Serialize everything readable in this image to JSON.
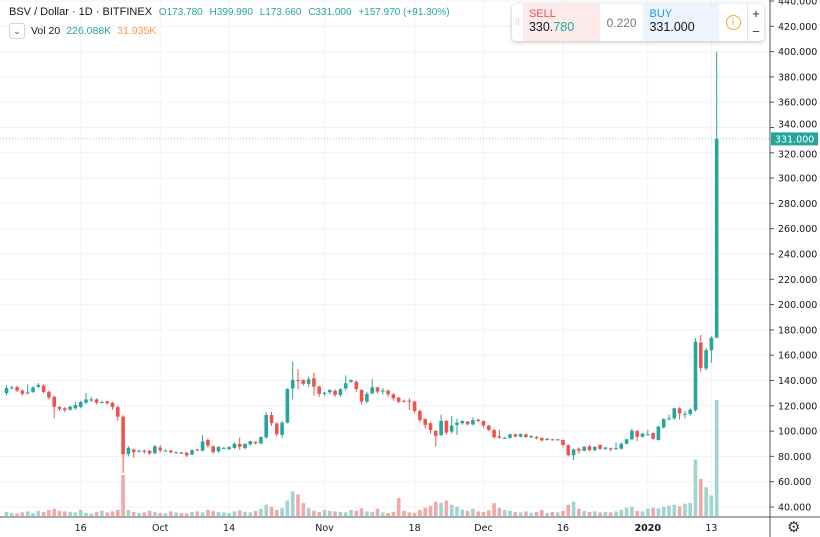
{
  "legend": {
    "symbol": "BSV / Dollar · 1D · BITFINEX",
    "open": "O173.780",
    "high": "H399.990",
    "low": "L173.660",
    "close": "C331.000",
    "change": "+157.970 (+91.30%)",
    "volume_label": "Vol 20",
    "volume_value": "226.088K",
    "volume_ma": "31.935K"
  },
  "trade_panel": {
    "sell_label": "SELL",
    "sell_price_main": "330.",
    "sell_price_tail": "780",
    "spread": "0.220",
    "buy_label": "BUY",
    "buy_price": "331.000",
    "info_icon": "i",
    "zoom_in": "+",
    "zoom_out": "−"
  },
  "colors": {
    "up": "#26a69a",
    "down": "#ef5350",
    "up_vol": "#9fd4cf",
    "down_vol": "#f2a8a6"
  },
  "chart_data": {
    "type": "candlestick",
    "ylim": [
      40,
      440
    ],
    "y_ticks": [
      "40.000",
      "60.000",
      "80.000",
      "100.000",
      "120.000",
      "140.000",
      "160.000",
      "180.000",
      "200.000",
      "220.000",
      "240.000",
      "260.000",
      "280.000",
      "300.000",
      "320.000",
      "340.000",
      "360.000",
      "380.000",
      "400.000",
      "420.000",
      "440.000"
    ],
    "last_price_label": "331.000",
    "last_price": 331,
    "start_date": "2019-09-02",
    "x_ticks": [
      {
        "label": "16",
        "date": "2019-09-16"
      },
      {
        "label": "Oct",
        "date": "2019-10-01"
      },
      {
        "label": "14",
        "date": "2019-10-14"
      },
      {
        "label": "Nov",
        "date": "2019-11-01"
      },
      {
        "label": "18",
        "date": "2019-11-18"
      },
      {
        "label": "Dec",
        "date": "2019-12-01"
      },
      {
        "label": "16",
        "date": "2019-12-16"
      },
      {
        "label": "2020",
        "date": "2020-01-01"
      },
      {
        "label": "13",
        "date": "2020-01-13"
      }
    ],
    "ohlc": [
      [
        130,
        136,
        128,
        134
      ],
      [
        134,
        136,
        133,
        134.5
      ],
      [
        134.8,
        136,
        131,
        132
      ],
      [
        132,
        133,
        128,
        129.5
      ],
      [
        130,
        137,
        129,
        130.5
      ],
      [
        131,
        135.5,
        130,
        134.5
      ],
      [
        135,
        138,
        134,
        136.5
      ],
      [
        136,
        137,
        130,
        131
      ],
      [
        131,
        132,
        125,
        126.5
      ],
      [
        127,
        128,
        110,
        119.3
      ],
      [
        119,
        120,
        116,
        117.5
      ],
      [
        118,
        119,
        115,
        116.7
      ],
      [
        117,
        120,
        116,
        119.3
      ],
      [
        118,
        123,
        117,
        120.6
      ],
      [
        119,
        124,
        118,
        122.9
      ],
      [
        122.5,
        130,
        121,
        125
      ],
      [
        125,
        127,
        123,
        125
      ],
      [
        125,
        126,
        121,
        122.5
      ],
      [
        123,
        124,
        122,
        123
      ],
      [
        123.5,
        124,
        121,
        122
      ],
      [
        122.5,
        123,
        117,
        119
      ],
      [
        119,
        120,
        108,
        111.4
      ],
      [
        111.4,
        112.5,
        67,
        81.6
      ],
      [
        82,
        88,
        80,
        86.8
      ],
      [
        85.5,
        86,
        79,
        83.4
      ],
      [
        84,
        85,
        83,
        84.7
      ],
      [
        84.5,
        85.5,
        82,
        83.7
      ],
      [
        84.5,
        85,
        81,
        82.4
      ],
      [
        82.4,
        89,
        82,
        88
      ],
      [
        87,
        89,
        83,
        84.7
      ],
      [
        84.7,
        85.5,
        84,
        84.7
      ],
      [
        84.7,
        85,
        82.5,
        83.2
      ],
      [
        83.2,
        84,
        82.5,
        83.2
      ],
      [
        83.2,
        83.5,
        82,
        82.1
      ],
      [
        83,
        83.5,
        79.5,
        80.8
      ],
      [
        81.5,
        85.5,
        81,
        85
      ],
      [
        85.5,
        86,
        84,
        84.7
      ],
      [
        84.5,
        97,
        84,
        91.8
      ],
      [
        93,
        94,
        87,
        88.5
      ],
      [
        88,
        88.5,
        82,
        83.4
      ],
      [
        84,
        88,
        83,
        87.5
      ],
      [
        86.7,
        87.5,
        86,
        86.7
      ],
      [
        85.8,
        88,
        85,
        87.3
      ],
      [
        86.7,
        91,
        86,
        90
      ],
      [
        89.8,
        95,
        85,
        87.5
      ],
      [
        86.6,
        90.5,
        85.5,
        89.8
      ],
      [
        89.5,
        92.5,
        88.5,
        92
      ],
      [
        91.5,
        92,
        89.5,
        90.4
      ],
      [
        90.3,
        96,
        89.5,
        95.2
      ],
      [
        95,
        115,
        94,
        112.7
      ],
      [
        112.7,
        115,
        104,
        106.3
      ],
      [
        106,
        107,
        96,
        97.5
      ],
      [
        97,
        108,
        94.5,
        106.7
      ],
      [
        106.7,
        134,
        106,
        133.3
      ],
      [
        133.8,
        155,
        125,
        140.4
      ],
      [
        140.4,
        149,
        133,
        139.6
      ],
      [
        140.4,
        141,
        136,
        137.3
      ],
      [
        137.3,
        143,
        135,
        141
      ],
      [
        141.7,
        146,
        128,
        135.2
      ],
      [
        135.2,
        136,
        127,
        129.4
      ],
      [
        129.4,
        131,
        128,
        130.4
      ],
      [
        130.7,
        133,
        129,
        132.5
      ],
      [
        132,
        133,
        127,
        128.6
      ],
      [
        128.6,
        134,
        127,
        133
      ],
      [
        133.8,
        144,
        132,
        137.8
      ],
      [
        139,
        141,
        138,
        140.4
      ],
      [
        139,
        140,
        131,
        133.3
      ],
      [
        132.5,
        133,
        121,
        123.3
      ],
      [
        123.3,
        131,
        122,
        129.4
      ],
      [
        129.9,
        141,
        129,
        134.6
      ],
      [
        134.6,
        135,
        130,
        131.2
      ],
      [
        132,
        134,
        129,
        132
      ],
      [
        132,
        133,
        127,
        129.1
      ],
      [
        129.1,
        130,
        124,
        126
      ],
      [
        126.5,
        127,
        122,
        123.3
      ],
      [
        124,
        125,
        122.5,
        123.3
      ],
      [
        124,
        126,
        116.7,
        123.3
      ],
      [
        123.3,
        124,
        114,
        115.9
      ],
      [
        115.9,
        117,
        107,
        108.8
      ],
      [
        109.6,
        110,
        102,
        104.9
      ],
      [
        106.2,
        107,
        98,
        100.9
      ],
      [
        100.1,
        101,
        87.8,
        96.2
      ],
      [
        97,
        113,
        96,
        108
      ],
      [
        108,
        109,
        97,
        98.8
      ],
      [
        99.6,
        112,
        98,
        104.4
      ],
      [
        104.9,
        110,
        97,
        106.7
      ],
      [
        106.2,
        108.5,
        105,
        108
      ],
      [
        107.5,
        108,
        104.5,
        105.4
      ],
      [
        105.2,
        111,
        104.5,
        108.8
      ],
      [
        109,
        110,
        107,
        108
      ],
      [
        108,
        108.5,
        103,
        104.4
      ],
      [
        104.4,
        105,
        100,
        100.9
      ],
      [
        100.9,
        102,
        94,
        95.1
      ],
      [
        95.8,
        101,
        94,
        94.7
      ],
      [
        94.7,
        95.5,
        94,
        94.7
      ],
      [
        94.7,
        98,
        94,
        97.5
      ],
      [
        97.5,
        98,
        95,
        95.6
      ],
      [
        95.6,
        98,
        95,
        97.7
      ],
      [
        97.5,
        98,
        94.5,
        95.4
      ],
      [
        95.1,
        96.5,
        94.5,
        96.2
      ],
      [
        95.4,
        96,
        93.5,
        94.3
      ],
      [
        94.7,
        95,
        92,
        92.6
      ],
      [
        93,
        94.5,
        92.5,
        94
      ],
      [
        93.5,
        94,
        92.5,
        93
      ],
      [
        93,
        93.8,
        92.5,
        93.5
      ],
      [
        93,
        93.5,
        87,
        89
      ],
      [
        89,
        89.5,
        80,
        81
      ],
      [
        81,
        86,
        77,
        85.5
      ],
      [
        86,
        87,
        82,
        84.5
      ],
      [
        84.5,
        88,
        84,
        87.7
      ],
      [
        88,
        89,
        84,
        85
      ],
      [
        85,
        88,
        84,
        87.5
      ],
      [
        89,
        89.5,
        85,
        86
      ],
      [
        86,
        87.5,
        85,
        87
      ],
      [
        86.5,
        87,
        84,
        85.5
      ],
      [
        86,
        91,
        85,
        86.5
      ],
      [
        86,
        91,
        85.5,
        90
      ],
      [
        90,
        94,
        89.5,
        93.5
      ],
      [
        93.5,
        102,
        93,
        100.3
      ],
      [
        100,
        101,
        92,
        95.5
      ],
      [
        95.5,
        98.5,
        95,
        98
      ],
      [
        97.5,
        101,
        97,
        97.5
      ],
      [
        98.5,
        99,
        93,
        94
      ],
      [
        93,
        104,
        92.5,
        103.6
      ],
      [
        103,
        110,
        102,
        109.5
      ],
      [
        109.5,
        113,
        108.5,
        110
      ],
      [
        110,
        118.5,
        109,
        118
      ],
      [
        118,
        119,
        109,
        114
      ],
      [
        113.6,
        116,
        110,
        113.6
      ],
      [
        113.5,
        118,
        112,
        117
      ],
      [
        116.5,
        173.4,
        115.5,
        170.7
      ],
      [
        170,
        176,
        147,
        150
      ],
      [
        149.5,
        166,
        148,
        164
      ],
      [
        164,
        175,
        154,
        173.78
      ],
      [
        173.78,
        399.99,
        173.66,
        331
      ]
    ],
    "volume_k": [
      8,
      6,
      5,
      7,
      9,
      6,
      10,
      8,
      12,
      14,
      10,
      9,
      8,
      7,
      12,
      6,
      5,
      8,
      10,
      7,
      9,
      12,
      80,
      12,
      8,
      6,
      7,
      10,
      8,
      6,
      5,
      9,
      7,
      6,
      5,
      8,
      9,
      7,
      12,
      10,
      8,
      7,
      6,
      9,
      11,
      8,
      7,
      10,
      14,
      22,
      18,
      12,
      15,
      30,
      48,
      42,
      25,
      15,
      10,
      8,
      12,
      10,
      9,
      8,
      7,
      12,
      10,
      15,
      9,
      8,
      14,
      7,
      6,
      8,
      35,
      10,
      7,
      6,
      12,
      16,
      20,
      28,
      26,
      30,
      22,
      18,
      12,
      10,
      14,
      9,
      8,
      11,
      25,
      16,
      12,
      10,
      8,
      7,
      9,
      6,
      8,
      12,
      6,
      8,
      7,
      10,
      22,
      28,
      14,
      10,
      8,
      9,
      7,
      8,
      7,
      9,
      12,
      16,
      18,
      10,
      9,
      14,
      16,
      15,
      18,
      20,
      22,
      19,
      24,
      25,
      110,
      72,
      56,
      40,
      226.088
    ]
  }
}
